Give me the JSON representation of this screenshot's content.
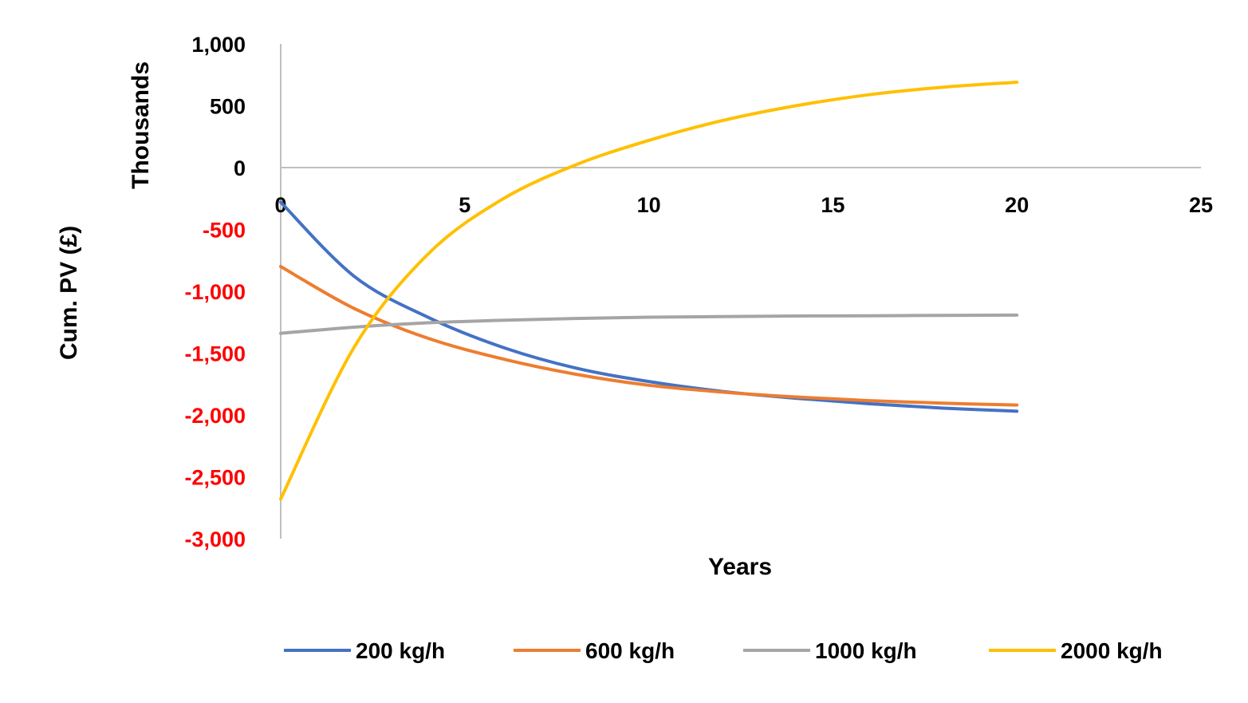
{
  "chart_data": {
    "type": "line",
    "xlabel": "Years",
    "ylabel": "Cum. PV (£)",
    "yunit_label": "Thousands",
    "xlim": [
      0,
      25
    ],
    "ylim": [
      -3000,
      1000
    ],
    "x_ticks": [
      "0",
      "5",
      "10",
      "15",
      "20",
      "25"
    ],
    "y_ticks": [
      {
        "label": "1,000",
        "value": 1000,
        "color": "#000000"
      },
      {
        "label": "500",
        "value": 500,
        "color": "#000000"
      },
      {
        "label": "0",
        "value": 0,
        "color": "#000000"
      },
      {
        "label": "-500",
        "value": -500,
        "color": "#ff0000"
      },
      {
        "label": "-1,000",
        "value": -1000,
        "color": "#ff0000"
      },
      {
        "label": "-1,500",
        "value": -1500,
        "color": "#ff0000"
      },
      {
        "label": "-2,000",
        "value": -2000,
        "color": "#ff0000"
      },
      {
        "label": "-2,500",
        "value": -2500,
        "color": "#ff0000"
      },
      {
        "label": "-3,000",
        "value": -3000,
        "color": "#ff0000"
      }
    ],
    "legend_position": "bottom",
    "grid": false,
    "x": [
      0,
      2,
      4,
      6,
      8,
      10,
      12,
      14,
      16,
      18,
      20
    ],
    "series": [
      {
        "name": "200 kg/h",
        "color": "#4472c4",
        "values": [
          -280,
          -880,
          -1210,
          -1450,
          -1620,
          -1730,
          -1810,
          -1865,
          -1910,
          -1945,
          -1970
        ]
      },
      {
        "name": "600 kg/h",
        "color": "#ed7d31",
        "values": [
          -800,
          -1140,
          -1380,
          -1545,
          -1670,
          -1760,
          -1815,
          -1855,
          -1885,
          -1905,
          -1920
        ]
      },
      {
        "name": "1000 kg/h",
        "color": "#a5a5a5",
        "values": [
          -1340,
          -1290,
          -1255,
          -1235,
          -1220,
          -1210,
          -1205,
          -1200,
          -1198,
          -1195,
          -1193
        ]
      },
      {
        "name": "2000 kg/h",
        "color": "#ffc000",
        "values": [
          -2680,
          -1450,
          -700,
          -260,
          20,
          220,
          380,
          500,
          590,
          650,
          690
        ]
      }
    ]
  }
}
